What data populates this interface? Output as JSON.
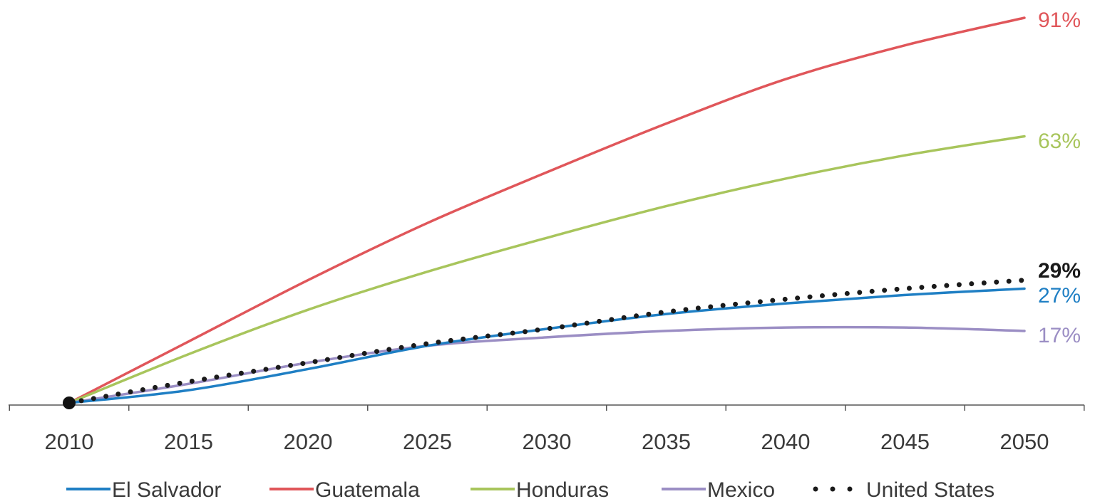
{
  "chart_data": {
    "type": "line",
    "title": "",
    "xlabel": "",
    "ylabel": "",
    "x": [
      2010,
      2015,
      2020,
      2025,
      2030,
      2035,
      2040,
      2045,
      2050
    ],
    "xlim": [
      2010,
      2050
    ],
    "ylim": [
      0,
      95
    ],
    "y_axis_shown": false,
    "grid": false,
    "legend_position": "bottom",
    "series": [
      {
        "name": "El Salvador",
        "color": "#1f7fc4",
        "style": "solid",
        "end_label": "27%",
        "values": [
          0,
          3,
          8,
          13.5,
          17.5,
          21,
          23.5,
          25.5,
          27
        ]
      },
      {
        "name": "Guatemala",
        "color": "#e0565a",
        "style": "solid",
        "end_label": "91%",
        "values": [
          0,
          14.5,
          29,
          42.5,
          54.5,
          66,
          76.5,
          84.5,
          91
        ]
      },
      {
        "name": "Honduras",
        "color": "#a8c55c",
        "style": "solid",
        "end_label": "63%",
        "values": [
          0,
          11.5,
          22,
          31,
          39,
          46.5,
          53,
          58.5,
          63
        ]
      },
      {
        "name": "Mexico",
        "color": "#9b8ec4",
        "style": "solid",
        "end_label": "17%",
        "values": [
          0,
          4.5,
          9.5,
          13.5,
          15.5,
          17,
          17.8,
          17.8,
          17
        ]
      },
      {
        "name": "United States",
        "color": "#1a1a1a",
        "style": "dotted",
        "end_label": "29%",
        "values": [
          0,
          5,
          9.5,
          14,
          17.5,
          21.5,
          24.5,
          27,
          29
        ]
      }
    ]
  }
}
